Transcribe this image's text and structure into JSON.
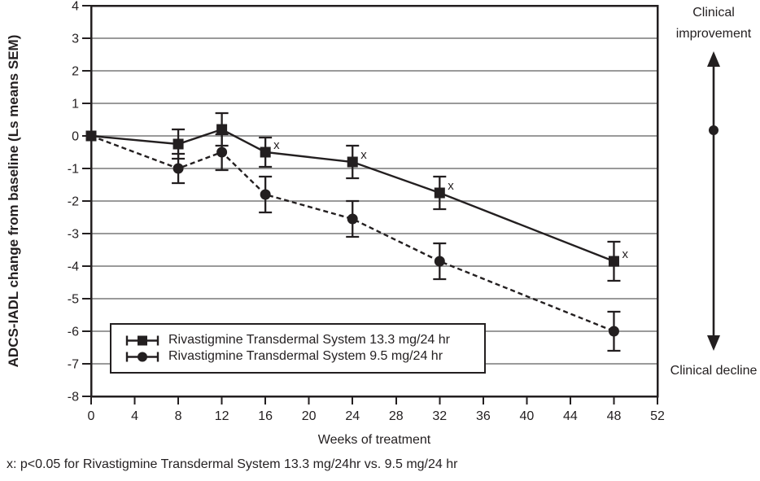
{
  "colors": {
    "ink": "#231f20",
    "grid": "#9a9a9a",
    "background": "#ffffff"
  },
  "chart_data": {
    "type": "line",
    "title": "",
    "xlabel": "Weeks of treatment",
    "ylabel": "ADCS-IADL change from baseline (Ls means SEM)",
    "xlim": [
      0,
      52
    ],
    "ylim": [
      -8,
      4
    ],
    "x_ticks": [
      0,
      4,
      8,
      12,
      16,
      20,
      24,
      28,
      32,
      36,
      40,
      44,
      48,
      52
    ],
    "y_ticks": [
      4,
      3,
      2,
      1,
      0,
      -1,
      -2,
      -3,
      -4,
      -5,
      -6,
      -7,
      -8
    ],
    "grid": "horizontal-gray",
    "legend_position": "inside-bottom-left",
    "x": [
      0,
      8,
      12,
      16,
      24,
      32,
      48
    ],
    "series": [
      {
        "name": "Rivastigmine Transdermal System 13.3 mg/24 hr",
        "marker": "square",
        "line_style": "solid",
        "values": [
          0,
          -0.25,
          0.2,
          -0.5,
          -0.8,
          -1.75,
          -3.85
        ],
        "sem": [
          0,
          0.45,
          0.5,
          0.45,
          0.5,
          0.5,
          0.6
        ]
      },
      {
        "name": "Rivastigmine Transdermal System 9.5 mg/24 hr",
        "marker": "circle",
        "line_style": "dashed",
        "values": [
          0,
          -1.0,
          -0.5,
          -1.8,
          -2.55,
          -3.85,
          -6.0
        ],
        "sem": [
          0,
          0.45,
          0.55,
          0.55,
          0.55,
          0.55,
          0.6
        ]
      }
    ],
    "significance_markers": {
      "symbol": "x",
      "series_index": 0,
      "weeks": [
        16,
        24,
        32,
        48
      ]
    }
  },
  "right_scale": {
    "top_label": "Clinical improvement",
    "bottom_label": "Clinical decline"
  },
  "footnote": "x: p<0.05 for Rivastigmine Transdermal System 13.3 mg/24hr vs. 9.5 mg/24 hr"
}
